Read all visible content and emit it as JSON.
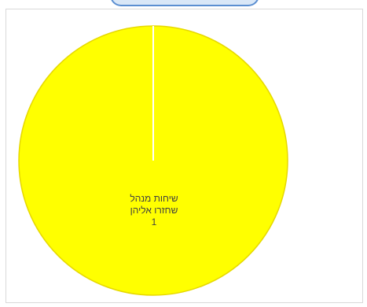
{
  "chart_data": {
    "type": "pie",
    "slices": [
      {
        "label": "שיחות מנהל שחזרו אליהן",
        "label_lines": [
          "שיחות מנהל",
          "שחזרו אליהן"
        ],
        "value": 1,
        "value_text": "1",
        "color": "#ffff00"
      }
    ],
    "legend": "none"
  },
  "colors": {
    "slice_fill": "#ffff00",
    "slice_stroke": "#e6d800",
    "divider": "#ffffff",
    "frame_border": "#d9d9d9",
    "top_accent": "#5b8fd1"
  }
}
